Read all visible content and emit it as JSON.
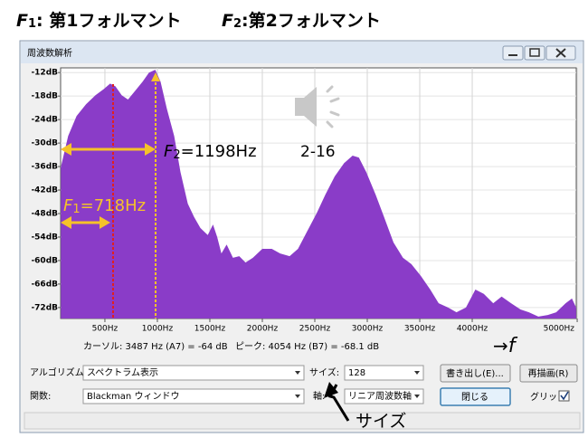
{
  "header": {
    "f1": {
      "symbol": "F",
      "sub": "1",
      "text": ": 第1フォルマント"
    },
    "f2": {
      "symbol": "F",
      "sub": "2",
      "text": ":第2フォルマント"
    }
  },
  "window": {
    "title": "周波数解析"
  },
  "chart_data": {
    "type": "area",
    "color": "#8a3cc8",
    "grid": true,
    "x": [
      80,
      150,
      230,
      320,
      410,
      490,
      550,
      600,
      660,
      720,
      790,
      860,
      920,
      980,
      1030,
      1090,
      1160,
      1220,
      1290,
      1350,
      1410,
      1480,
      1530,
      1570,
      1610,
      1660,
      1720,
      1780,
      1840,
      1910,
      2000,
      2090,
      2170,
      2260,
      2340,
      2430,
      2520,
      2600,
      2690,
      2780,
      2860,
      2920,
      2990,
      3080,
      3160,
      3250,
      3340,
      3420,
      3510,
      3600,
      3680,
      3770,
      3850,
      3940,
      4030,
      4110,
      4200,
      4280,
      4370,
      4460,
      4540,
      4630,
      4720,
      4800,
      4890,
      4950,
      4990
    ],
    "values": [
      -36.2,
      -28.2,
      -23.1,
      -20.1,
      -17.8,
      -16.2,
      -14.8,
      -15.5,
      -17.8,
      -18.9,
      -16.6,
      -14.3,
      -12.0,
      -11.3,
      -14.3,
      -21.2,
      -28.2,
      -37.4,
      -45.5,
      -48.9,
      -51.7,
      -53.5,
      -50.8,
      -54.0,
      -58.2,
      -55.9,
      -59.3,
      -58.9,
      -60.5,
      -59.3,
      -57.0,
      -57.0,
      -58.2,
      -58.9,
      -57.0,
      -52.4,
      -47.8,
      -43.2,
      -38.5,
      -35.1,
      -33.2,
      -33.7,
      -37.4,
      -43.2,
      -48.9,
      -55.4,
      -59.3,
      -60.9,
      -63.9,
      -67.4,
      -70.9,
      -72.0,
      -73.2,
      -72.0,
      -67.4,
      -68.5,
      -70.9,
      -69.2,
      -70.9,
      -72.5,
      -73.2,
      -74.3,
      -73.9,
      -73.2,
      -70.9,
      -69.7,
      -72.0
    ],
    "xlim": [
      78,
      4991
    ],
    "ylim": [
      -74.8,
      -10.8
    ],
    "xticks": [
      {
        "value": 500,
        "label": "500Hz"
      },
      {
        "value": 1000,
        "label": "1000Hz"
      },
      {
        "value": 1500,
        "label": "1500Hz"
      },
      {
        "value": 2000,
        "label": "2000Hz"
      },
      {
        "value": 2500,
        "label": "2500Hz"
      },
      {
        "value": 3000,
        "label": "3000Hz"
      },
      {
        "value": 3500,
        "label": "3500Hz"
      },
      {
        "value": 4000,
        "label": "4000Hz"
      },
      {
        "value": 5000,
        "label": "5000Hz"
      }
    ],
    "yticks": [
      {
        "value": -12,
        "label": "-12dB"
      },
      {
        "value": -18,
        "label": "-18dB"
      },
      {
        "value": -24,
        "label": "-24dB"
      },
      {
        "value": -30,
        "label": "-30dB"
      },
      {
        "value": -36,
        "label": "-36dB"
      },
      {
        "value": -42,
        "label": "-42dB"
      },
      {
        "value": -48,
        "label": "-48dB"
      },
      {
        "value": -54,
        "label": "-54dB"
      },
      {
        "value": -60,
        "label": "-60dB"
      },
      {
        "value": -66,
        "label": "-66dB"
      },
      {
        "value": -72,
        "label": "-72dB"
      }
    ]
  },
  "annotations": {
    "f1": {
      "symbol": "F",
      "sub": "1",
      "text": "=718Hz"
    },
    "f2": {
      "symbol": "F",
      "sub": "2",
      "text": "=1198Hz"
    },
    "figure": "2-16",
    "axis_arrow": "→",
    "axis_symbol": "f",
    "size_callout": "サイズ"
  },
  "status": {
    "cursor": "カーソル: 3487 Hz (A7) = -64 dB",
    "peak": "ピーク: 4054 Hz (B7) = -68.1 dB"
  },
  "controls": {
    "algorithm_label": "アルゴリズム:",
    "algorithm": "スペクトラム表示",
    "size_label": "サイズ:",
    "size": "128",
    "export": "書き出し(E)...",
    "replot": "再描画(R)",
    "function_label": "関数:",
    "function": "Blackman ウィンドウ",
    "axis_label": "軸:",
    "axis": "リニア周波数軸",
    "close": "閉じる",
    "grid_label": "グリッド"
  }
}
